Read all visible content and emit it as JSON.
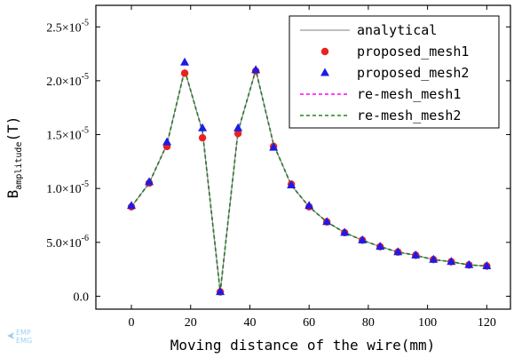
{
  "chart_data": {
    "type": "line",
    "xlabel": "Moving distance of the wire(mm)",
    "ylabel": "B",
    "ylabel_subscript": "amplitude",
    "ylabel_unit": "(T)",
    "xlim": [
      -12,
      128
    ],
    "ylim": [
      -1.2e-06,
      2.7e-05
    ],
    "xticks": [
      0,
      20,
      40,
      60,
      80,
      100,
      120
    ],
    "xtick_labels": [
      "0",
      "20",
      "40",
      "60",
      "80",
      "100",
      "120"
    ],
    "yticks": [
      0,
      5e-06,
      1e-05,
      1.5e-05,
      2e-05,
      2.5e-05
    ],
    "ytick_labels": [
      {
        "mantissa": "0.0",
        "exp": ""
      },
      {
        "mantissa": "5.0",
        "exp": "-6"
      },
      {
        "mantissa": "1.0",
        "exp": "-5"
      },
      {
        "mantissa": "1.5",
        "exp": "-5"
      },
      {
        "mantissa": "2.0",
        "exp": "-5"
      },
      {
        "mantissa": "2.5",
        "exp": "-5"
      }
    ],
    "tick_times": "×10",
    "legend_position": "top-right",
    "series": [
      {
        "name": "analytical",
        "style": "solid-line",
        "color": "#808080",
        "x": [
          0,
          6,
          12,
          18,
          24,
          30,
          36,
          42,
          48,
          54,
          60,
          66,
          72,
          78,
          84,
          90,
          96,
          102,
          108,
          114,
          120
        ],
        "y": [
          8.3e-06,
          1.05e-05,
          1.41e-05,
          2.1e-05,
          1.53e-05,
          4e-07,
          1.53e-05,
          2.1e-05,
          1.41e-05,
          1.03e-05,
          8.3e-06,
          6.9e-06,
          5.9e-06,
          5.2e-06,
          4.6e-06,
          4.1e-06,
          3.8e-06,
          3.4e-06,
          3.2e-06,
          2.9e-06,
          2.8e-06
        ]
      },
      {
        "name": "proposed_mesh1",
        "style": "circle",
        "color": "#e8231f",
        "x": [
          0,
          6,
          12,
          18,
          24,
          30,
          36,
          42,
          48,
          54,
          60,
          66,
          72,
          78,
          84,
          90,
          96,
          102,
          108,
          114,
          120
        ],
        "y": [
          8.3e-06,
          1.05e-05,
          1.39e-05,
          2.07e-05,
          1.47e-05,
          4e-07,
          1.51e-05,
          2.09e-05,
          1.39e-05,
          1.04e-05,
          8.3e-06,
          6.9e-06,
          5.9e-06,
          5.2e-06,
          4.6e-06,
          4.1e-06,
          3.8e-06,
          3.4e-06,
          3.2e-06,
          2.9e-06,
          2.8e-06
        ]
      },
      {
        "name": "proposed_mesh2",
        "style": "triangle",
        "color": "#1c1ce8",
        "x": [
          0,
          6,
          12,
          18,
          24,
          30,
          36,
          42,
          48,
          54,
          60,
          66,
          72,
          78,
          84,
          90,
          96,
          102,
          108,
          114,
          120
        ],
        "y": [
          8.4e-06,
          1.06e-05,
          1.43e-05,
          2.17e-05,
          1.56e-05,
          4e-07,
          1.56e-05,
          2.1e-05,
          1.38e-05,
          1.03e-05,
          8.4e-06,
          6.9e-06,
          5.9e-06,
          5.2e-06,
          4.6e-06,
          4.1e-06,
          3.8e-06,
          3.4e-06,
          3.2e-06,
          2.9e-06,
          2.8e-06
        ]
      },
      {
        "name": "re-mesh_mesh1",
        "style": "dashed-line",
        "color": "#ff00ff",
        "x": [
          0,
          6,
          12,
          18,
          24,
          30,
          36,
          42,
          48,
          54,
          60,
          66,
          72,
          78,
          84,
          90,
          96,
          102,
          108,
          114,
          120
        ],
        "y": [
          8.3e-06,
          1.05e-05,
          1.41e-05,
          2.1e-05,
          1.53e-05,
          4e-07,
          1.53e-05,
          2.1e-05,
          1.41e-05,
          1.03e-05,
          8.3e-06,
          6.9e-06,
          5.9e-06,
          5.2e-06,
          4.6e-06,
          4.1e-06,
          3.8e-06,
          3.4e-06,
          3.2e-06,
          2.9e-06,
          2.8e-06
        ]
      },
      {
        "name": "re-mesh_mesh2",
        "style": "dashed-line",
        "color": "#1a8a1a",
        "x": [
          0,
          6,
          12,
          18,
          24,
          30,
          36,
          42,
          48,
          54,
          60,
          66,
          72,
          78,
          84,
          90,
          96,
          102,
          108,
          114,
          120
        ],
        "y": [
          8.3e-06,
          1.05e-05,
          1.41e-05,
          2.1e-05,
          1.53e-05,
          4e-07,
          1.53e-05,
          2.1e-05,
          1.41e-05,
          1.03e-05,
          8.3e-06,
          6.9e-06,
          5.9e-06,
          5.2e-06,
          4.6e-06,
          4.1e-06,
          3.8e-06,
          3.4e-06,
          3.2e-06,
          2.9e-06,
          2.8e-06
        ]
      }
    ]
  },
  "watermark": {
    "line1": "EMP",
    "line2": "EMG"
  }
}
